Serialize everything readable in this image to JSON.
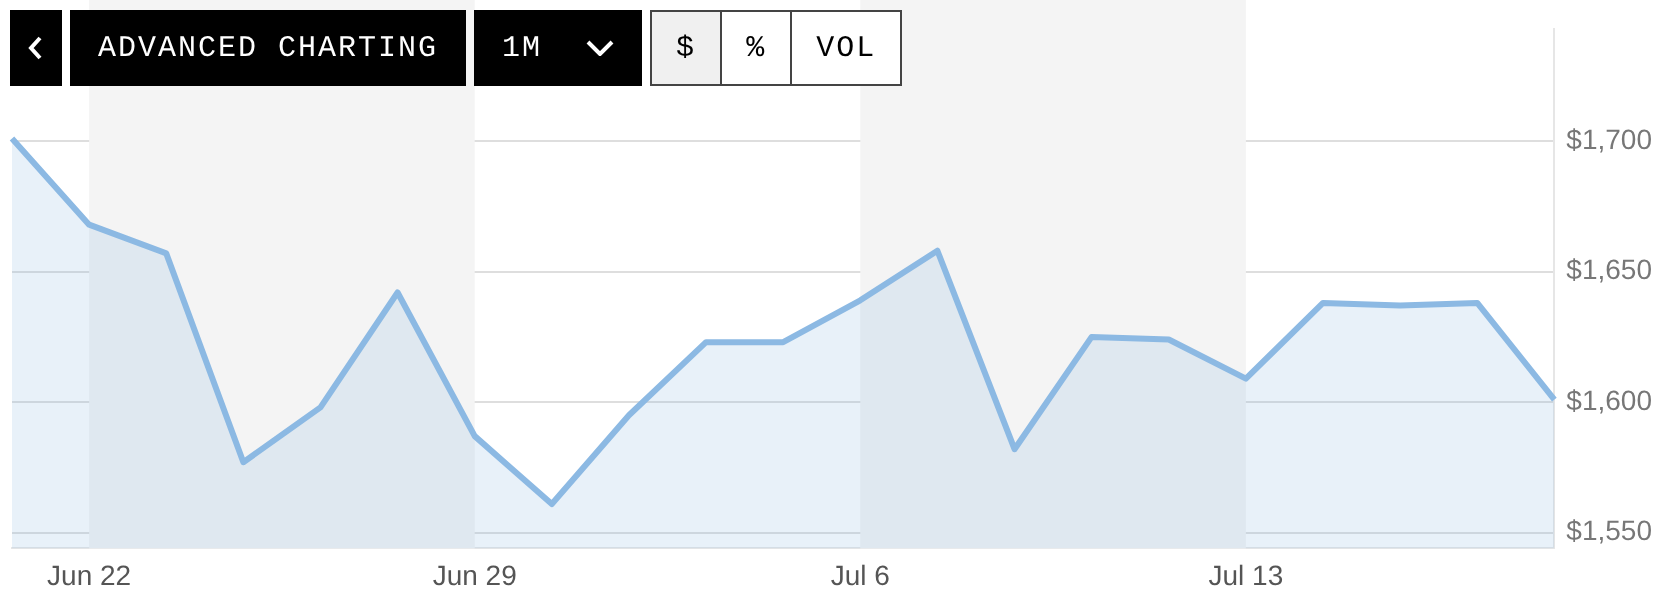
{
  "chart_data": {
    "type": "area",
    "categories": [
      null,
      "Jun 22",
      null,
      null,
      null,
      null,
      "Jun 29",
      null,
      null,
      null,
      null,
      "Jul 6",
      null,
      null,
      null,
      null,
      "Jul 13",
      null,
      null,
      null,
      null
    ],
    "series": [
      {
        "color": "#8cb9e3",
        "values": [
          1701,
          1668,
          1657,
          1577,
          1598,
          1642,
          1587,
          1561,
          1595,
          1623,
          1623,
          1639,
          1658,
          1582,
          1625,
          1624,
          1609,
          1638,
          1637,
          1638,
          1601
        ]
      }
    ],
    "ylim": [
      1544,
      1743
    ],
    "yticks": [
      {
        "value": 1550,
        "label": "$1,550"
      },
      {
        "value": 1600,
        "label": "$1,600"
      },
      {
        "value": 1650,
        "label": "$1,650"
      },
      {
        "value": 1700,
        "label": "$1,700"
      }
    ],
    "grid": "y",
    "bands": [
      {
        "axis": "x",
        "from": "Jun 22",
        "to": "Jun 29",
        "color": "#f4f4f4"
      },
      {
        "axis": "x",
        "from": "Jul 6",
        "to": "Jul 13",
        "color": "#f4f4f4"
      }
    ],
    "annotations": [
      "ADVANCED CHARTING",
      "1M",
      "$",
      "%",
      "VOL"
    ]
  }
}
